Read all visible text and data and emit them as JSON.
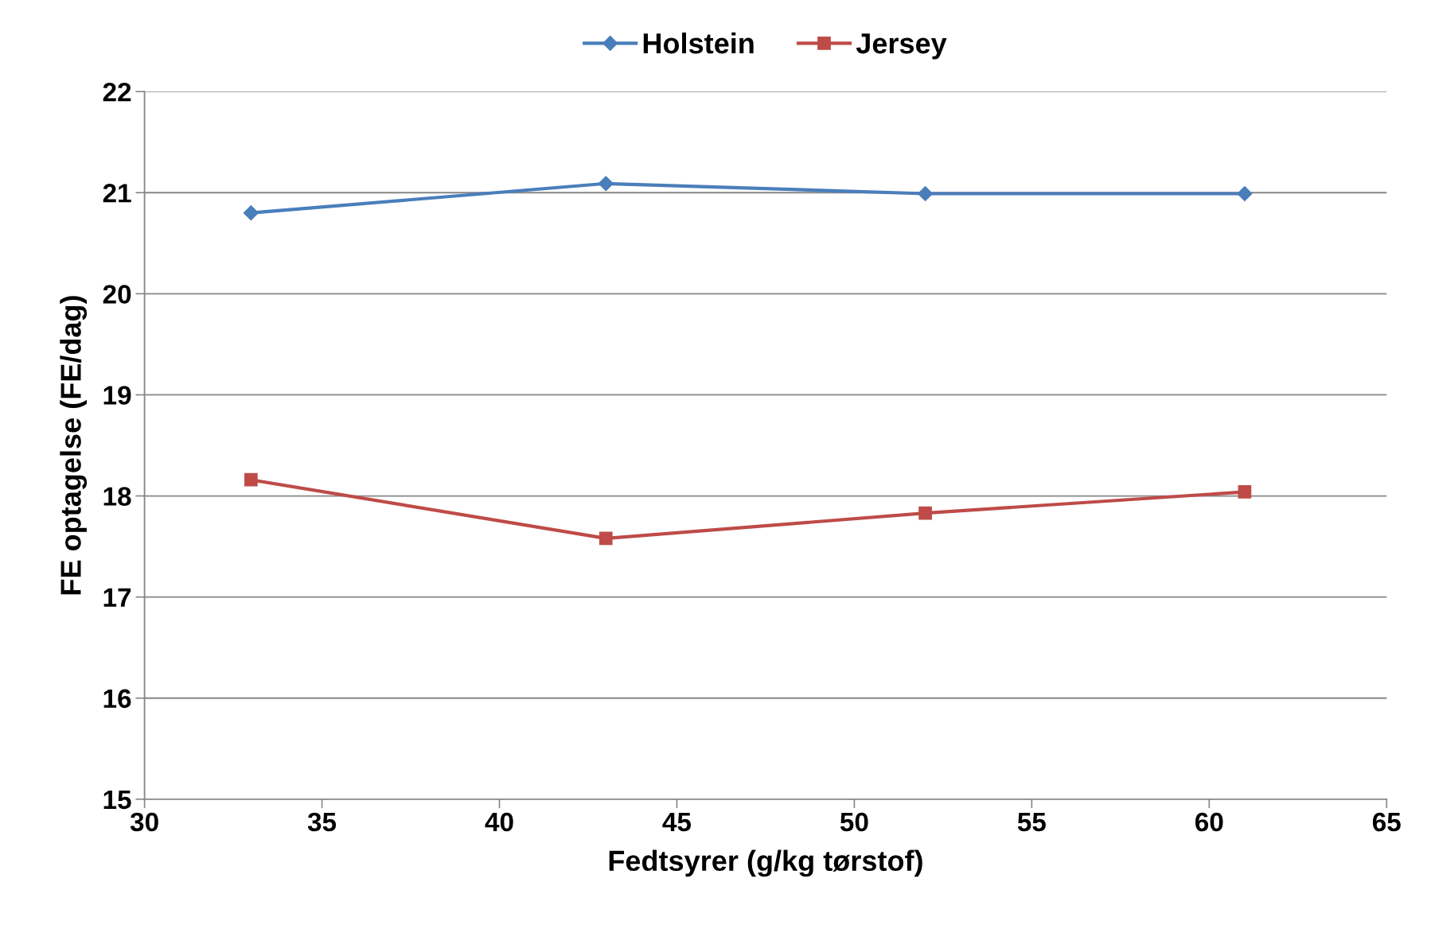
{
  "chart_data": {
    "type": "line",
    "xlabel": "Fedtsyrer (g/kg tørstof)",
    "ylabel": "FE optagelse (FE/dag)",
    "x": [
      33,
      43,
      52,
      61
    ],
    "series": [
      {
        "name": "Holstein",
        "color": "#4a7ebb",
        "marker": "diamond",
        "values": [
          20.8,
          21.09,
          20.99,
          20.99
        ]
      },
      {
        "name": "Jersey",
        "color": "#be4b48",
        "marker": "square",
        "values": [
          18.16,
          17.58,
          17.83,
          18.04
        ]
      }
    ],
    "xlim": [
      30,
      65
    ],
    "xticks": [
      30,
      35,
      40,
      45,
      50,
      55,
      60,
      65
    ],
    "ylim": [
      15,
      22
    ],
    "yticks": [
      15,
      16,
      17,
      18,
      19,
      20,
      21,
      22
    ],
    "grid": "y",
    "legend": "top",
    "line_style": "solid"
  }
}
